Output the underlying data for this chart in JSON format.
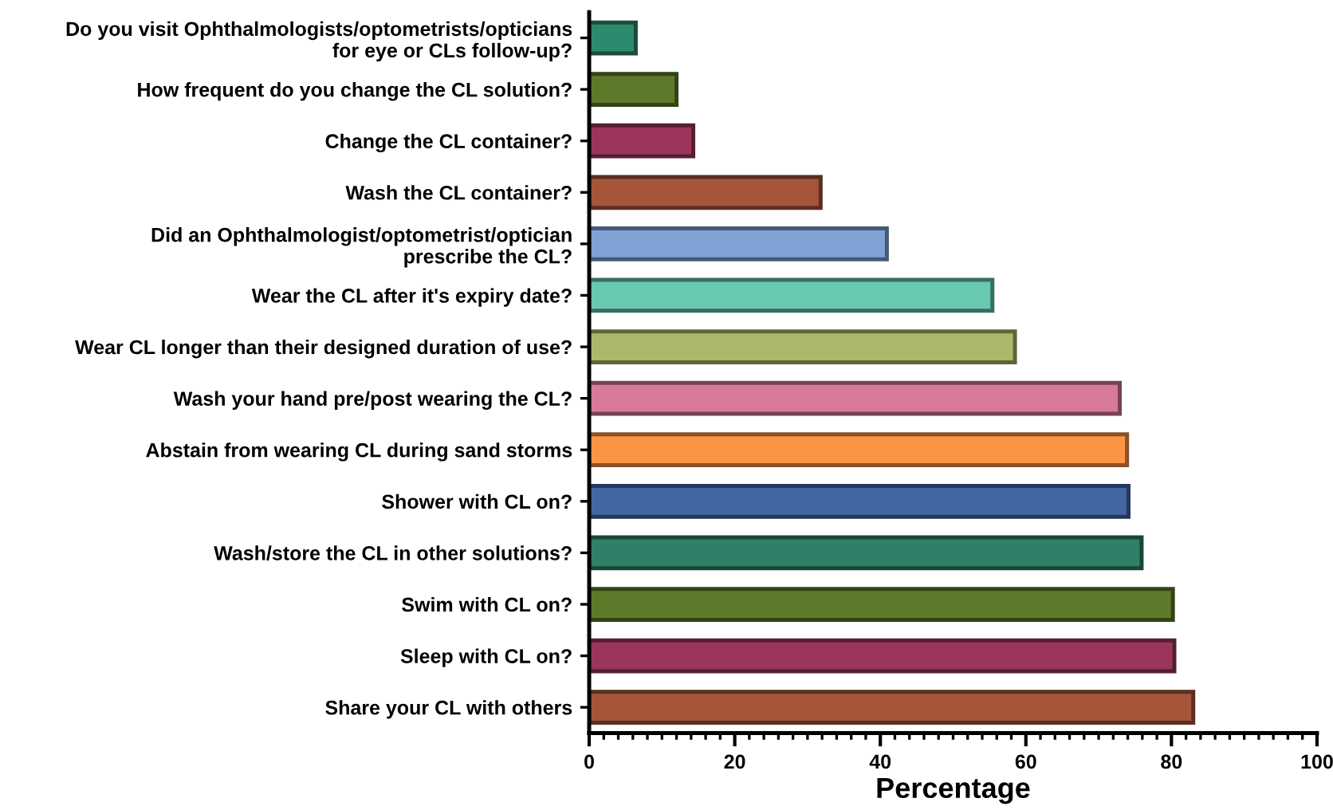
{
  "chart_data": {
    "type": "bar",
    "orientation": "horizontal",
    "xlabel": "Percentage",
    "categories": [
      "Do you visit Ophthalmologists/optometrists/opticians\nfor eye or CLs follow-up?",
      "How frequent do you change the CL solution?",
      "Change the CL container?",
      "Wash the CL container?",
      "Did an Ophthalmologist/optometrist/optician\nprescribe the CL?",
      "Wear the CL after it's expiry date?",
      "Wear CL longer than their designed duration of use?",
      "Wash your hand pre/post wearing the CL?",
      "Abstain from wearing CL during sand storms",
      "Shower with CL on?",
      "Wash/store the CL in other solutions?",
      "Swim with CL on?",
      "Sleep with CL on?",
      "Share your CL with others"
    ],
    "values": [
      6.4,
      12.0,
      14.3,
      31.8,
      40.9,
      55.4,
      58.5,
      72.9,
      73.9,
      74.1,
      75.9,
      80.2,
      80.4,
      83.0
    ],
    "colors": [
      "#2e8a6e",
      "#5c7a2a",
      "#9c355c",
      "#a6553a",
      "#80a3d6",
      "#68c8b0",
      "#aeb86c",
      "#d87a98",
      "#fb9546",
      "#4268a3",
      "#2e8068",
      "#5c7a2a",
      "#9c355c",
      "#a6553a"
    ],
    "xlim": [
      0,
      100
    ],
    "xticks": [
      0,
      {
        "value": 2,
        "label": null
      },
      {
        "value": 4,
        "label": null
      },
      {
        "value": 6,
        "label": null
      },
      {
        "value": 8,
        "label": null
      },
      {
        "value": 10,
        "label": null
      },
      {
        "value": 12,
        "label": null
      },
      {
        "value": 14,
        "label": null
      },
      {
        "value": 16,
        "label": null
      },
      {
        "value": 18,
        "label": null
      },
      20,
      {
        "value": 22,
        "label": null
      },
      {
        "value": 24,
        "label": null
      },
      {
        "value": 26,
        "label": null
      },
      {
        "value": 28,
        "label": null
      },
      {
        "value": 30,
        "label": null
      },
      {
        "value": 32,
        "label": null
      },
      {
        "value": 34,
        "label": null
      },
      {
        "value": 36,
        "label": null
      },
      {
        "value": 38,
        "label": null
      },
      40,
      {
        "value": 42,
        "label": null
      },
      {
        "value": 44,
        "label": null
      },
      {
        "value": 46,
        "label": null
      },
      {
        "value": 48,
        "label": null
      },
      {
        "value": 50,
        "label": null
      },
      {
        "value": 52,
        "label": null
      },
      {
        "value": 54,
        "label": null
      },
      {
        "value": 56,
        "label": null
      },
      {
        "value": 58,
        "label": null
      },
      60,
      {
        "value": 62,
        "label": null
      },
      {
        "value": 64,
        "label": null
      },
      {
        "value": 66,
        "label": null
      },
      {
        "value": 68,
        "label": null
      },
      {
        "value": 70,
        "label": null
      },
      {
        "value": 72,
        "label": null
      },
      {
        "value": 74,
        "label": null
      },
      {
        "value": 76,
        "label": null
      },
      {
        "value": 78,
        "label": null
      },
      80,
      {
        "value": 82,
        "label": null
      },
      {
        "value": 84,
        "label": null
      },
      {
        "value": 86,
        "label": null
      },
      {
        "value": 88,
        "label": null
      },
      {
        "value": 90,
        "label": null
      },
      {
        "value": 92,
        "label": null
      },
      {
        "value": 94,
        "label": null
      },
      {
        "value": 96,
        "label": null
      },
      {
        "value": 98,
        "label": null
      },
      100
    ],
    "grid": false,
    "legend": false
  }
}
